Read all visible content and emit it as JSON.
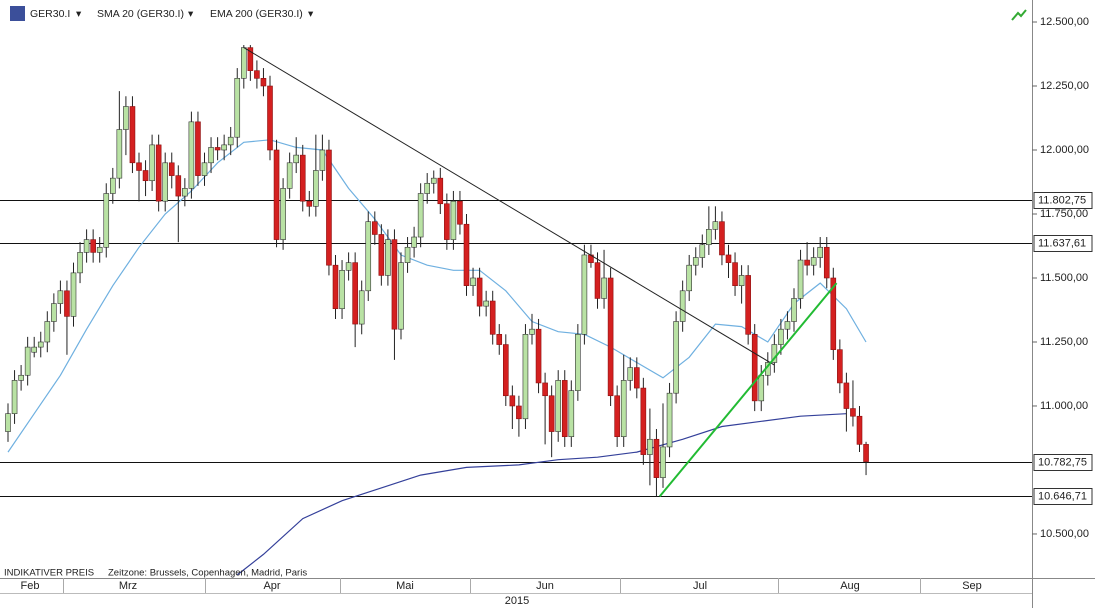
{
  "chart_data": {
    "type": "candlestick",
    "title": "GER30.I",
    "up_color": "#b9e2a4",
    "down_color": "#d42020",
    "series": [
      {
        "name": "GER30.I",
        "open": [
          10900,
          10970,
          11100,
          11120,
          11210,
          11230,
          11250,
          11330,
          11400,
          11450,
          11350,
          11520,
          11600,
          11650,
          11600,
          11620,
          11830,
          11890,
          12080,
          12170,
          11950,
          11920,
          11880,
          12020,
          11800,
          11950,
          11900,
          11820,
          11850,
          12110,
          11900,
          11950,
          12010,
          12000,
          12020,
          12050,
          12280,
          12400,
          12310,
          12280,
          12250,
          12000,
          11650,
          11850,
          11950,
          11980,
          11800,
          11780,
          11920,
          12000,
          11550,
          11380,
          11530,
          11560,
          11320,
          11450,
          11720,
          11670,
          11510,
          11650,
          11300,
          11560,
          11620,
          11660,
          11830,
          11870,
          11890,
          11790,
          11650,
          11800,
          11710,
          11470,
          11500,
          11390,
          11410,
          11280,
          11240,
          11040,
          11000,
          10950,
          11280,
          11300,
          11090,
          11040,
          10900,
          11100,
          10880,
          11060,
          11280,
          11590,
          11560,
          11420,
          11500,
          11040,
          10880,
          11100,
          11150,
          11070,
          10810,
          10870,
          10720,
          10840,
          11050,
          11330,
          11450,
          11550,
          11580,
          11630,
          11690,
          11720,
          11590,
          11560,
          11470,
          11510,
          11280,
          11020,
          11120,
          11170,
          11240,
          11300,
          11330,
          11420,
          11570,
          11550,
          11580,
          11620,
          11500,
          11220,
          11090,
          10990,
          10960,
          10850
        ],
        "high": [
          11010,
          11140,
          11160,
          11270,
          11270,
          11290,
          11370,
          11440,
          11490,
          11490,
          11560,
          11640,
          11690,
          11690,
          11660,
          11870,
          11930,
          12230,
          12210,
          12210,
          11990,
          11960,
          12060,
          12060,
          11990,
          11990,
          11940,
          11890,
          12150,
          12150,
          11990,
          12050,
          12050,
          12060,
          12090,
          12320,
          12410,
          12410,
          12350,
          12320,
          12290,
          12040,
          11890,
          11990,
          12050,
          12020,
          11840,
          12060,
          12060,
          12040,
          11590,
          11570,
          11600,
          11600,
          11490,
          11760,
          11760,
          11710,
          11690,
          11690,
          11600,
          11660,
          11700,
          11870,
          11910,
          11920,
          11930,
          11830,
          11840,
          11840,
          11750,
          11540,
          11540,
          11450,
          11450,
          11320,
          11280,
          11080,
          11040,
          11320,
          11360,
          11340,
          11130,
          11080,
          11140,
          11140,
          11100,
          11320,
          11630,
          11630,
          11600,
          11610,
          11540,
          11080,
          11200,
          11190,
          11190,
          11110,
          10990,
          10910,
          11010,
          11090,
          11370,
          11490,
          11590,
          11620,
          11670,
          11780,
          11780,
          11760,
          11630,
          11600,
          11550,
          11550,
          11320,
          11160,
          11210,
          11280,
          11340,
          11370,
          11460,
          11610,
          11640,
          11620,
          11660,
          11660,
          11540,
          11260,
          11130,
          11100,
          11000,
          10860
        ],
        "low": [
          10860,
          10930,
          11060,
          11080,
          11190,
          11190,
          11210,
          11290,
          11360,
          11200,
          11310,
          11480,
          11560,
          11560,
          11560,
          11580,
          11790,
          11850,
          11980,
          11910,
          11800,
          11820,
          11840,
          11760,
          11760,
          11850,
          11640,
          11780,
          11810,
          11860,
          11860,
          11910,
          11960,
          11960,
          11980,
          12010,
          12240,
          12270,
          12240,
          12210,
          11960,
          11620,
          11610,
          11810,
          11910,
          11760,
          11740,
          11740,
          11880,
          11510,
          11340,
          11340,
          11490,
          11230,
          11280,
          11410,
          11630,
          11470,
          11470,
          11180,
          11260,
          11520,
          11580,
          11620,
          11790,
          11830,
          11750,
          11610,
          11610,
          11670,
          11430,
          11430,
          11350,
          11350,
          11240,
          11200,
          11000,
          10910,
          10880,
          10910,
          11240,
          11050,
          10850,
          10800,
          10860,
          10840,
          10840,
          11020,
          11240,
          11540,
          11380,
          11380,
          11000,
          10840,
          10840,
          11060,
          11030,
          10770,
          10690,
          10646.71,
          10680,
          10800,
          11010,
          11290,
          11410,
          11510,
          11540,
          11590,
          11650,
          11550,
          11500,
          11430,
          11400,
          11240,
          10980,
          10980,
          11080,
          11130,
          11200,
          11260,
          11290,
          11380,
          11510,
          11510,
          11540,
          11460,
          11180,
          11050,
          10900,
          10920,
          10820,
          10730
        ],
        "close": [
          10970,
          11100,
          11120,
          11230,
          11230,
          11250,
          11330,
          11400,
          11450,
          11350,
          11520,
          11600,
          11650,
          11600,
          11620,
          11830,
          11890,
          12080,
          12170,
          11950,
          11920,
          11880,
          12020,
          11800,
          11950,
          11900,
          11820,
          11850,
          12110,
          11900,
          11950,
          12010,
          12000,
          12020,
          12050,
          12280,
          12400,
          12310,
          12280,
          12250,
          12000,
          11650,
          11850,
          11950,
          11980,
          11800,
          11780,
          11920,
          12000,
          11550,
          11380,
          11530,
          11560,
          11320,
          11450,
          11720,
          11670,
          11510,
          11650,
          11300,
          11560,
          11620,
          11660,
          11830,
          11870,
          11890,
          11790,
          11650,
          11800,
          11710,
          11470,
          11500,
          11390,
          11410,
          11280,
          11240,
          11040,
          11000,
          10950,
          11280,
          11300,
          11090,
          11040,
          10900,
          11100,
          10880,
          11060,
          11280,
          11590,
          11560,
          11420,
          11500,
          11040,
          10880,
          11100,
          11150,
          11070,
          10810,
          10870,
          10720,
          10840,
          11050,
          11330,
          11450,
          11550,
          11580,
          11630,
          11690,
          11720,
          11590,
          11560,
          11470,
          11510,
          11280,
          11020,
          11120,
          11170,
          11240,
          11300,
          11330,
          11420,
          11570,
          11550,
          11580,
          11620,
          11500,
          11220,
          11090,
          10990,
          10960,
          10850,
          10782.75
        ]
      }
    ],
    "lines": [
      {
        "name": "SMA 20 (GER30.I)",
        "color": "#6fb0e0",
        "x": [
          0,
          4,
          8,
          12,
          16,
          20,
          24,
          28,
          32,
          36,
          40,
          44,
          48,
          52,
          56,
          60,
          64,
          68,
          72,
          76,
          80,
          84,
          88,
          92,
          96,
          100,
          104,
          108,
          112,
          116,
          120,
          124,
          128,
          131
        ],
        "values": [
          10820,
          10970,
          11120,
          11300,
          11470,
          11620,
          11750,
          11840,
          11950,
          12030,
          12040,
          12010,
          12000,
          11850,
          11730,
          11590,
          11550,
          11530,
          11530,
          11450,
          11330,
          11290,
          11280,
          11230,
          11170,
          11110,
          11190,
          11320,
          11310,
          11250,
          11400,
          11480,
          11380,
          11250
        ]
      },
      {
        "name": "EMA 200 (GER30.I)",
        "color": "#34409a",
        "x": [
          35,
          39,
          45,
          51,
          57,
          63,
          70,
          78,
          84,
          90,
          96,
          103,
          109,
          115,
          121,
          128
        ],
        "values": [
          10340,
          10420,
          10560,
          10630,
          10680,
          10730,
          10760,
          10770,
          10790,
          10800,
          10820,
          10870,
          10920,
          10940,
          10960,
          10970
        ]
      }
    ],
    "levels": [
      {
        "value": 11802.75,
        "label": "11.802,75"
      },
      {
        "value": 11637.61,
        "label": "11.637,61"
      },
      {
        "value": 10782.75,
        "label": "10.782,75"
      },
      {
        "value": 10646.71,
        "label": "10.646,71"
      }
    ],
    "trendlines": [
      {
        "color": "#222222",
        "points": [
          [
            36,
            12400
          ],
          [
            117,
            11160
          ]
        ]
      },
      {
        "color": "#22bb33",
        "points": [
          [
            99.5,
            10646.71
          ],
          [
            126.5,
            11480
          ]
        ]
      }
    ],
    "ylim": [
      10328,
      12586
    ],
    "yticks": [
      {
        "value": 12500,
        "label": "12.500,00"
      },
      {
        "value": 12250,
        "label": "12.250,00"
      },
      {
        "value": 12000,
        "label": "12.000,00"
      },
      {
        "value": 11750,
        "label": "11.750,00"
      },
      {
        "value": 11500,
        "label": "11.500,00"
      },
      {
        "value": 11250,
        "label": "11.250,00"
      },
      {
        "value": 11000,
        "label": "11.000,00"
      },
      {
        "value": 10500,
        "label": "10.500,00"
      }
    ],
    "months": [
      "Feb",
      "Mrz",
      "Apr",
      "Mai",
      "Jun",
      "Jul",
      "Aug",
      "Sep"
    ],
    "year": "2015",
    "price_note": "INDIKATIVER PREIS",
    "timezone_note": "Zeitzone: Brussels, Copenhagen, Madrid, Paris"
  }
}
